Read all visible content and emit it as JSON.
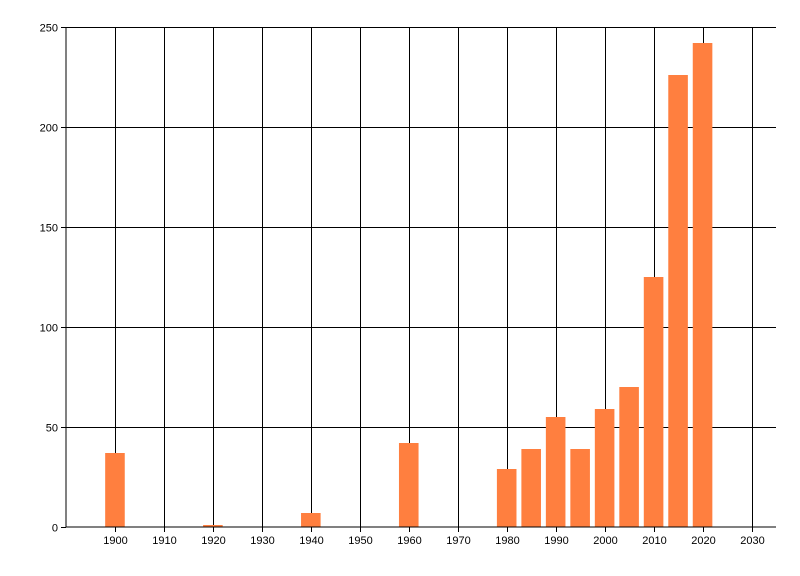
{
  "chart_data": {
    "type": "bar",
    "x_ticks": [
      1900,
      1910,
      1920,
      1930,
      1940,
      1950,
      1960,
      1970,
      1980,
      1990,
      2000,
      2010,
      2020,
      2030
    ],
    "xlim": [
      1890,
      2035
    ],
    "y_ticks": [
      0,
      50,
      100,
      150,
      200,
      250
    ],
    "ylim": [
      0,
      250
    ],
    "bar_width_years": 4,
    "grid": true,
    "legend": "none",
    "title": "",
    "xlabel": "",
    "ylabel": "",
    "series": [
      {
        "color": "#ff7f3f",
        "points": [
          {
            "x": 1900,
            "y": 37
          },
          {
            "x": 1920,
            "y": 1
          },
          {
            "x": 1940,
            "y": 7
          },
          {
            "x": 1960,
            "y": 42
          },
          {
            "x": 1980,
            "y": 29
          },
          {
            "x": 1985,
            "y": 39
          },
          {
            "x": 1990,
            "y": 55
          },
          {
            "x": 1995,
            "y": 39
          },
          {
            "x": 2000,
            "y": 59
          },
          {
            "x": 2005,
            "y": 70
          },
          {
            "x": 2010,
            "y": 125
          },
          {
            "x": 2015,
            "y": 226
          },
          {
            "x": 2020,
            "y": 242
          }
        ]
      }
    ]
  }
}
